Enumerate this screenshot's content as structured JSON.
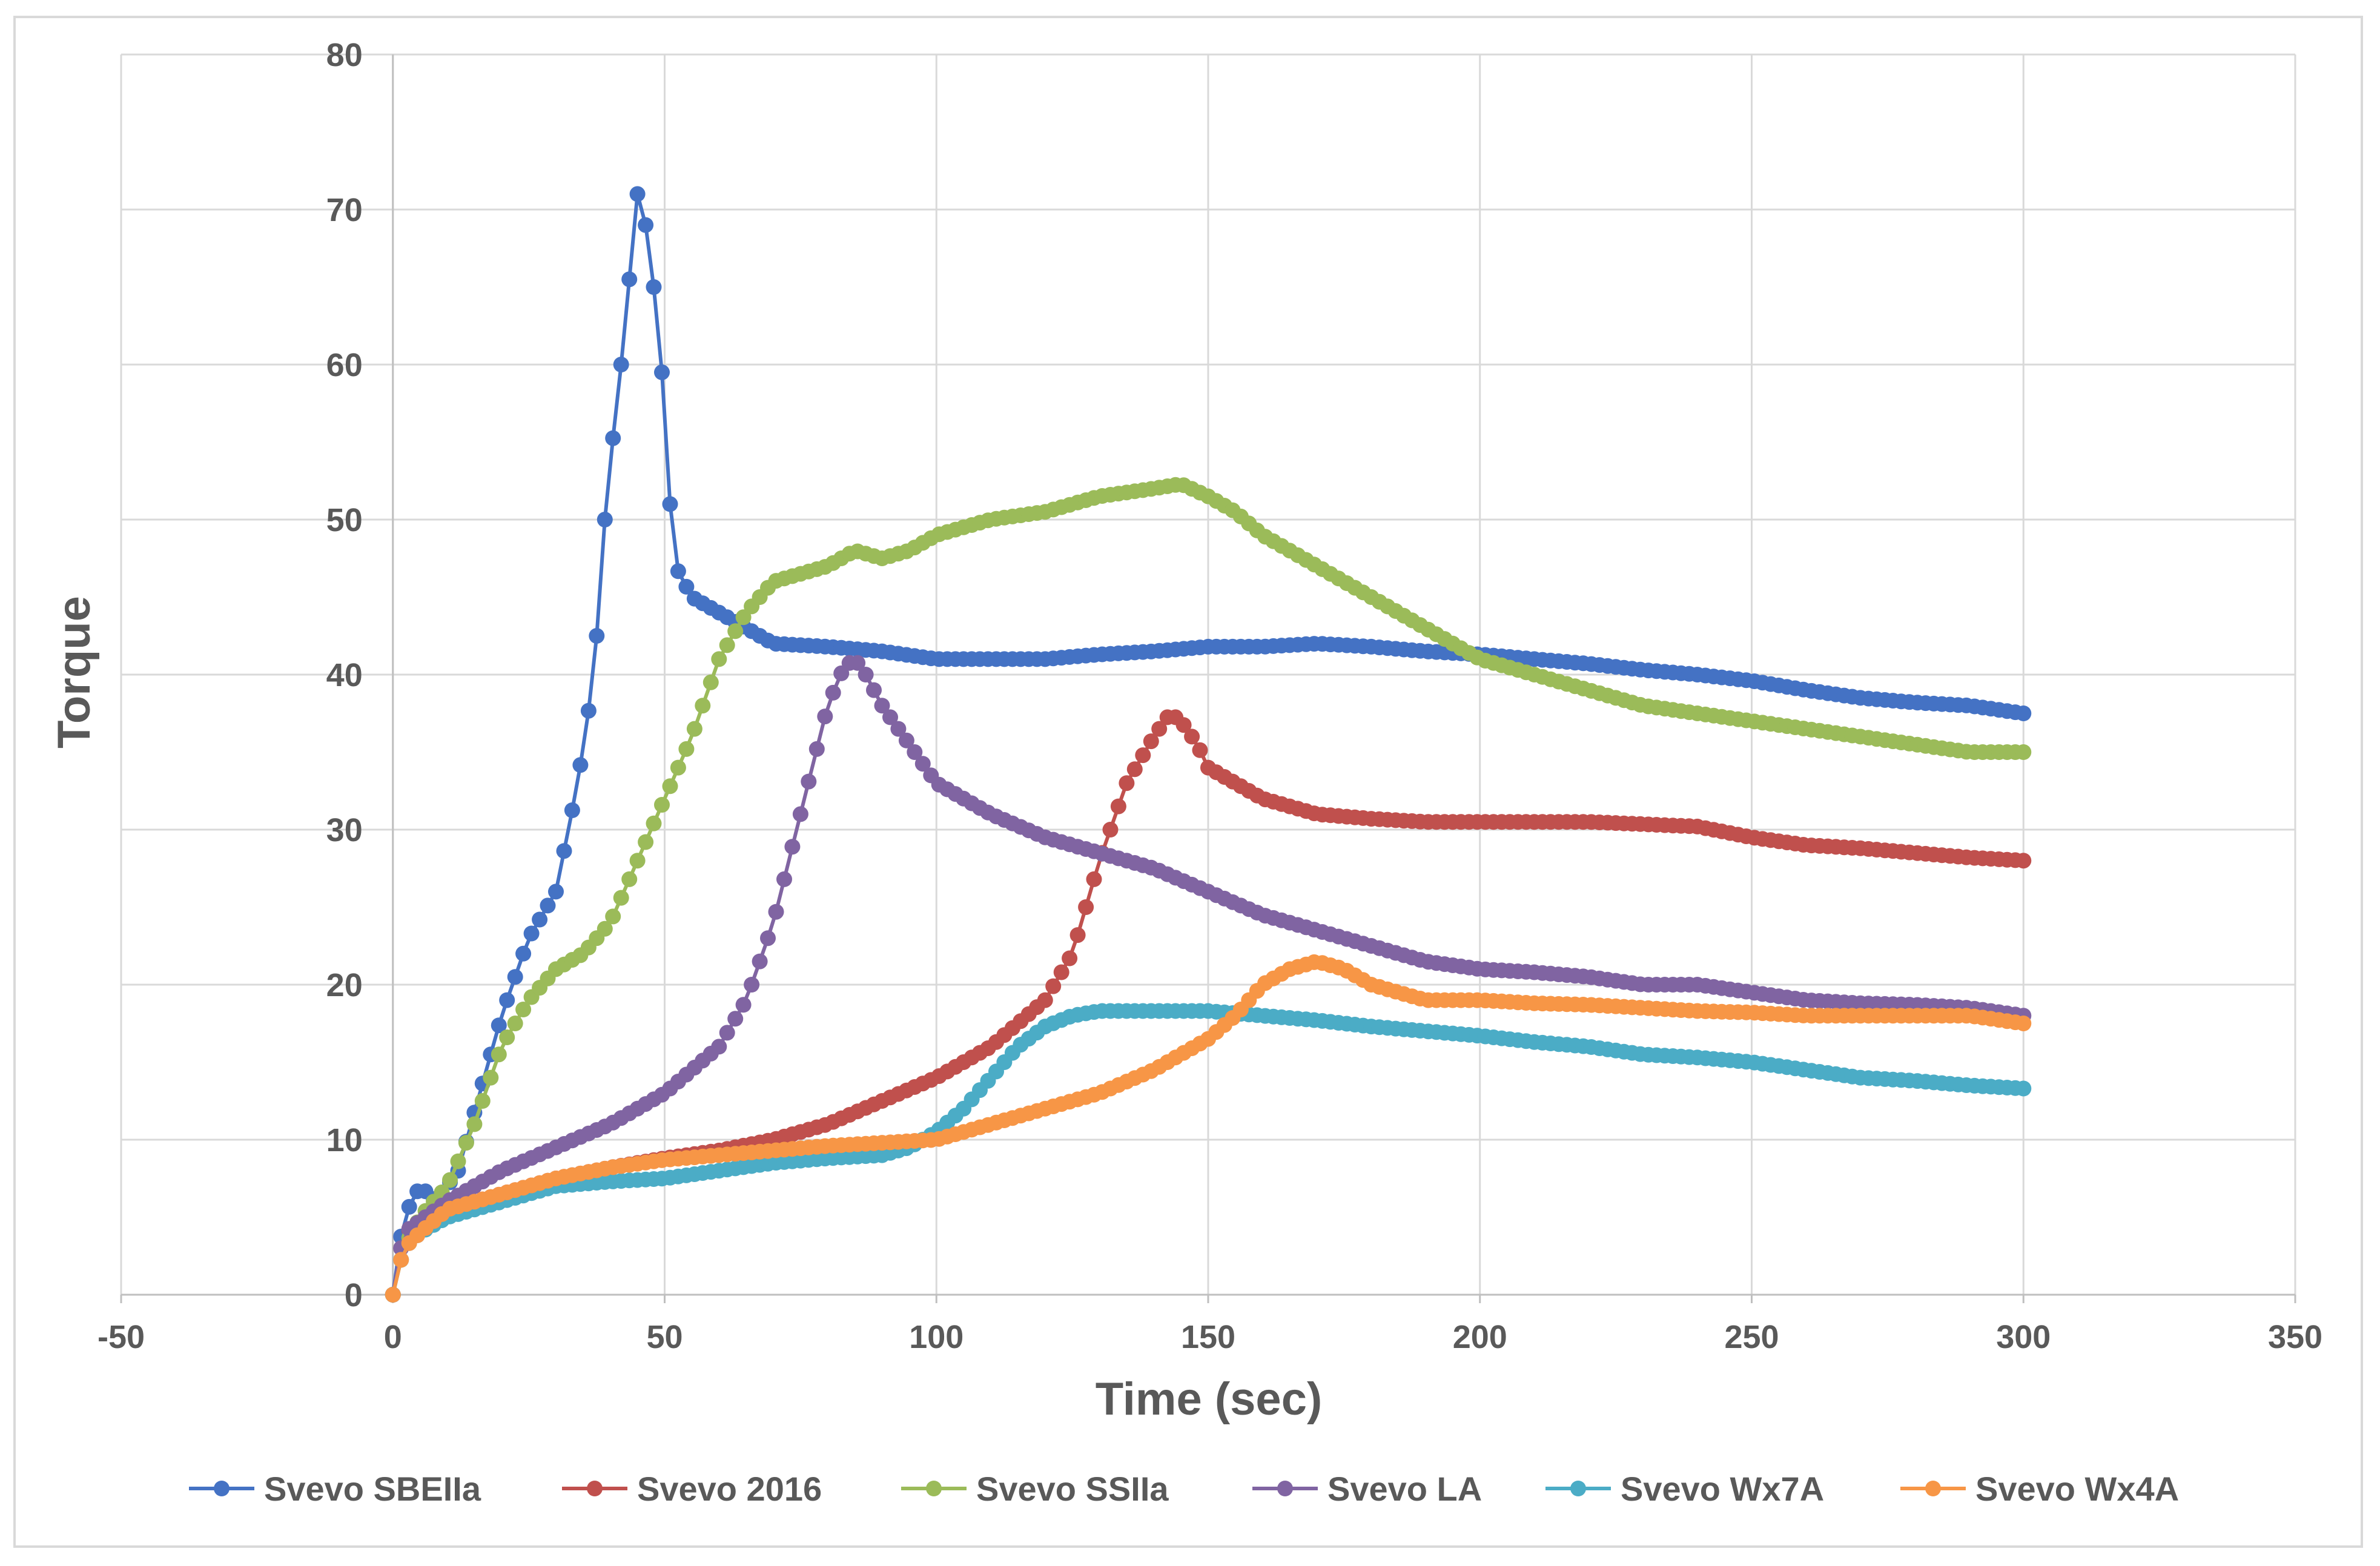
{
  "chart_data": {
    "type": "line",
    "title": "",
    "xlabel": "Time (sec)",
    "ylabel": "Torque",
    "xlim": [
      -50,
      350
    ],
    "ylim": [
      0,
      80
    ],
    "xticks": [
      -50,
      0,
      50,
      100,
      150,
      200,
      250,
      300,
      350
    ],
    "yticks": [
      0,
      10,
      20,
      30,
      40,
      50,
      60,
      70,
      80
    ],
    "grid": true,
    "legend_position": "bottom",
    "markers": true,
    "series": [
      {
        "name": "Svevo SBEIIa",
        "color": "#4472c4",
        "x": [
          0,
          2,
          5,
          8,
          12,
          16,
          20,
          25,
          30,
          34,
          37,
          39,
          41,
          43,
          44,
          45,
          46,
          47,
          48,
          49,
          50,
          51,
          52,
          55,
          60,
          70,
          80,
          90,
          100,
          110,
          120,
          130,
          140,
          150,
          160,
          170,
          180,
          190,
          200,
          210,
          220,
          230,
          240,
          250,
          260,
          270,
          280,
          290,
          300
        ],
        "y": [
          0,
          5,
          7,
          6,
          8,
          13,
          18,
          23,
          26,
          33,
          40,
          50,
          57,
          63,
          68,
          71,
          69,
          69,
          65,
          62,
          57,
          51,
          47,
          45,
          44,
          42,
          41.8,
          41.5,
          41,
          41,
          41,
          41.3,
          41.5,
          41.8,
          41.8,
          42,
          41.8,
          41.5,
          41.3,
          41,
          40.7,
          40.3,
          40,
          39.6,
          39,
          38.5,
          38.2,
          38,
          37.5
        ]
      },
      {
        "name": "Svevo 2016",
        "color": "#c0504d",
        "x": [
          0,
          2,
          10,
          20,
          30,
          40,
          50,
          60,
          70,
          80,
          90,
          100,
          110,
          115,
          120,
          125,
          130,
          135,
          140,
          143,
          145,
          148,
          150,
          155,
          160,
          170,
          180,
          190,
          200,
          220,
          240,
          250,
          260,
          270,
          280,
          290,
          300
        ],
        "y": [
          0,
          4,
          5.5,
          6.5,
          7.5,
          8.2,
          8.8,
          9.3,
          10,
          11,
          12.5,
          14,
          16,
          17.5,
          19,
          22,
          28,
          33,
          36,
          37.5,
          37,
          35.5,
          34,
          33,
          32,
          31,
          30.7,
          30.5,
          30.5,
          30.5,
          30.2,
          29.5,
          29,
          28.8,
          28.5,
          28.2,
          28
        ]
      },
      {
        "name": "Svevo SSIIa",
        "color": "#9bbb59",
        "x": [
          0,
          2,
          5,
          10,
          15,
          20,
          25,
          30,
          35,
          40,
          45,
          50,
          55,
          60,
          65,
          70,
          75,
          80,
          85,
          90,
          95,
          100,
          110,
          120,
          130,
          140,
          145,
          150,
          155,
          160,
          170,
          180,
          190,
          200,
          210,
          220,
          230,
          240,
          250,
          260,
          270,
          280,
          290,
          300
        ],
        "y": [
          0,
          3,
          5,
          7,
          11,
          16,
          19,
          21,
          22,
          24,
          28,
          32,
          36,
          41,
          44,
          46,
          46.5,
          47,
          48,
          47.5,
          48,
          49,
          50,
          50.5,
          51.5,
          52,
          52.3,
          51.5,
          50.5,
          49,
          47,
          45,
          43,
          41,
          40,
          39,
          38,
          37.5,
          37,
          36.5,
          36,
          35.5,
          35,
          35
        ]
      },
      {
        "name": "Svevo LA",
        "color": "#8064a2",
        "x": [
          0,
          2,
          10,
          20,
          30,
          40,
          50,
          60,
          65,
          70,
          75,
          80,
          83,
          85,
          87,
          90,
          95,
          100,
          110,
          120,
          130,
          140,
          150,
          160,
          170,
          180,
          190,
          200,
          210,
          220,
          230,
          240,
          250,
          260,
          270,
          280,
          290,
          300
        ],
        "y": [
          0,
          4,
          6,
          8,
          9.5,
          11,
          13,
          16,
          19,
          24,
          31,
          38,
          40.5,
          41,
          40,
          38,
          35.5,
          33,
          31,
          29.5,
          28.5,
          27.5,
          26,
          24.5,
          23.5,
          22.5,
          21.5,
          21,
          20.8,
          20.5,
          20,
          20,
          19.5,
          19,
          18.8,
          18.7,
          18.5,
          18
        ]
      },
      {
        "name": "Svevo Wx7A",
        "color": "#4bacc6",
        "x": [
          0,
          2,
          5,
          10,
          15,
          20,
          30,
          40,
          50,
          60,
          70,
          80,
          90,
          95,
          100,
          105,
          110,
          115,
          120,
          125,
          130,
          140,
          150,
          160,
          170,
          180,
          190,
          200,
          210,
          220,
          230,
          240,
          250,
          260,
          270,
          280,
          290,
          300
        ],
        "y": [
          0,
          3,
          4,
          5,
          5.5,
          6,
          7,
          7.3,
          7.5,
          8,
          8.5,
          8.8,
          9,
          9.5,
          10.5,
          12,
          14,
          16,
          17.3,
          18,
          18.3,
          18.3,
          18.3,
          18,
          17.7,
          17.3,
          17,
          16.7,
          16.3,
          16,
          15.5,
          15.3,
          15,
          14.5,
          14,
          13.8,
          13.5,
          13.3
        ]
      },
      {
        "name": "Svevo Wx4A",
        "color": "#f79646",
        "x": [
          0,
          2,
          5,
          10,
          20,
          30,
          40,
          50,
          60,
          70,
          80,
          90,
          100,
          110,
          120,
          130,
          140,
          145,
          150,
          155,
          160,
          165,
          170,
          175,
          180,
          185,
          190,
          200,
          210,
          220,
          230,
          240,
          250,
          260,
          270,
          280,
          290,
          300
        ],
        "y": [
          0,
          3,
          4,
          5.5,
          6.5,
          7.5,
          8.2,
          8.7,
          9,
          9.3,
          9.6,
          9.8,
          10,
          11,
          12,
          13,
          14.5,
          15.5,
          16.5,
          18,
          20,
          21,
          21.5,
          21,
          20,
          19.5,
          19,
          19,
          18.8,
          18.7,
          18.5,
          18.3,
          18.2,
          18,
          18,
          18,
          18,
          17.5
        ]
      }
    ]
  }
}
